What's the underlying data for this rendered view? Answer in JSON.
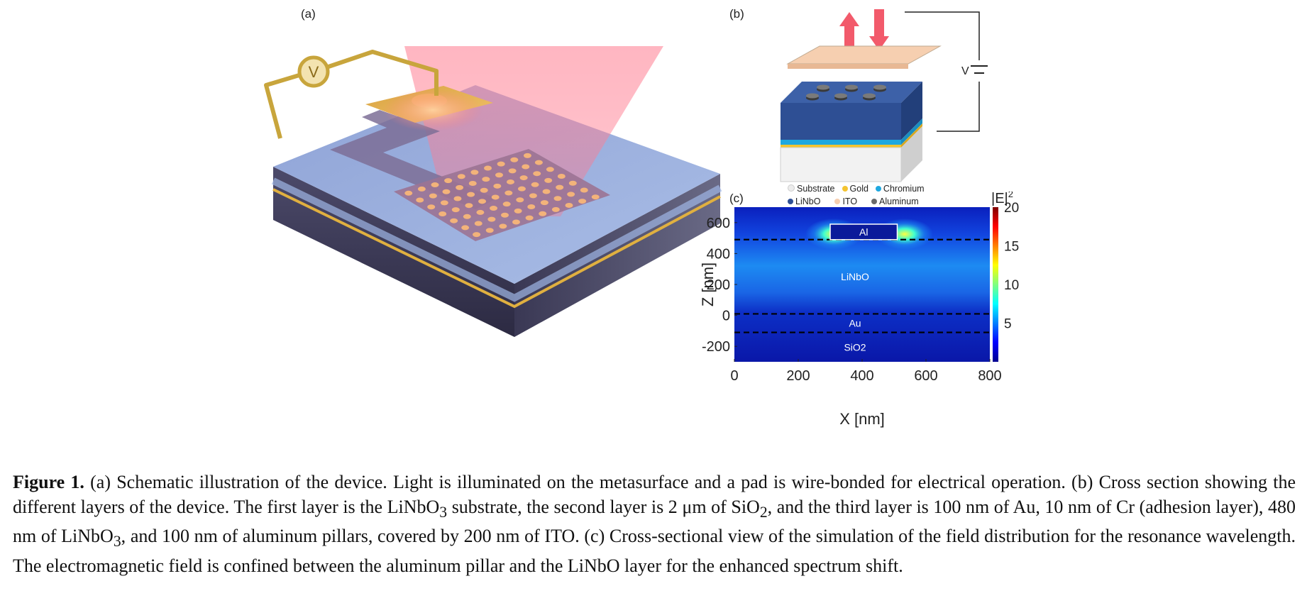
{
  "panel_labels": {
    "a": "(a)",
    "b": "(b)",
    "c": "(c)"
  },
  "voltmeter_symbol": "V",
  "panel_b": {
    "voltage_label": "V",
    "legend": [
      {
        "label": "Substrate",
        "color": "#ececec"
      },
      {
        "label": "Gold",
        "color": "#f4c430"
      },
      {
        "label": "Chromium",
        "color": "#1fa8e0"
      },
      {
        "label": "LiNbO",
        "color": "#2e4f94"
      },
      {
        "label": "ITO",
        "color": "#f6cfb0"
      },
      {
        "label": "Aluminum",
        "color": "#6a6a6a"
      }
    ]
  },
  "chart_data": {
    "type": "heatmap",
    "xlabel": "X [nm]",
    "ylabel": "Z [nm]",
    "xlim": [
      0,
      800
    ],
    "ylim": [
      -300,
      700
    ],
    "xticks": [
      0,
      200,
      400,
      600,
      800
    ],
    "yticks": [
      -200,
      0,
      200,
      400,
      600
    ],
    "colorbar": {
      "title": "|E|",
      "title_superscript": "2",
      "ticks": [
        5,
        10,
        15,
        20
      ],
      "range": [
        0,
        20
      ]
    },
    "regions": [
      {
        "label": "Al",
        "z_range": [
          490,
          590
        ],
        "x_range": [
          300,
          510
        ]
      },
      {
        "label": "LiNbO",
        "z_range": [
          10,
          490
        ]
      },
      {
        "label": "Au",
        "z_range": [
          -110,
          10
        ]
      },
      {
        "label": "SiO2",
        "z_range": [
          -300,
          -110
        ]
      }
    ],
    "interfaces_z": [
      490,
      10,
      -110
    ]
  },
  "caption": {
    "lead": "Figure 1.",
    "p1": " (a) Schematic illustration of the device. Light is illuminated on the metasurface and a pad is wire-bonded for electrical operation. (b) Cross section showing the different layers of the device. The first layer is the LiNbO",
    "s1": "3",
    "p2": " substrate, the second layer is 2 μm of SiO",
    "s2": "2",
    "p3": ", and the third layer is 100 nm of Au, 10 nm of Cr (adhesion layer), 480 nm of LiNbO",
    "s3": "3",
    "p4": ", and 100 nm of aluminum pillars, covered by 200 nm of ITO. (c) Cross-sectional view of the simulation of the field distribution for the resonance wavelength. The electromagnetic field is confined between the aluminum pillar and the LiNbO layer for the enhanced spectrum shift."
  }
}
